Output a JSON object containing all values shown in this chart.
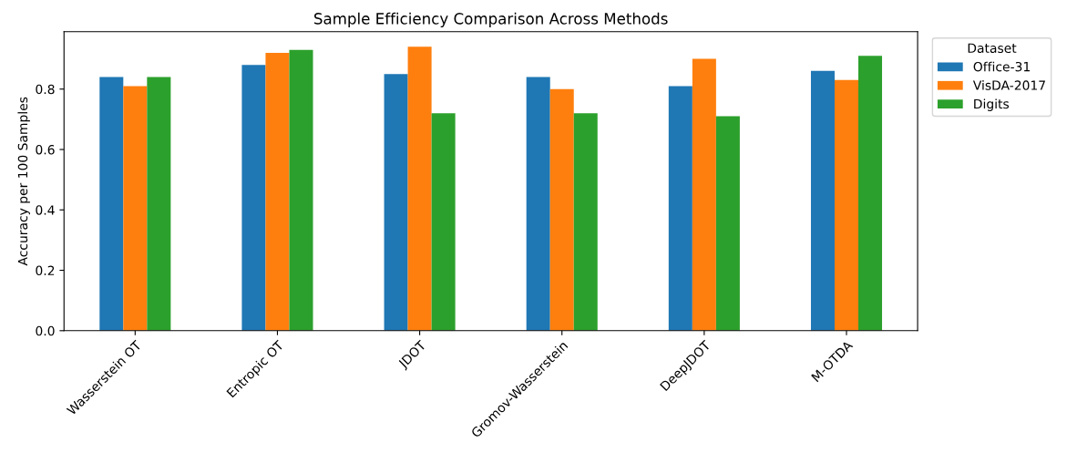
{
  "chart_data": {
    "type": "bar",
    "title": "Sample Efficiency Comparison Across Methods",
    "ylabel": "Accuracy per 100 Samples",
    "categories": [
      "Wasserstein OT",
      "Entropic OT",
      "JDOT",
      "Gromov-Wasserstein",
      "DeepJDOT",
      "M-OTDA"
    ],
    "series": [
      {
        "name": "Office-31",
        "color": "#1f77b4",
        "values": [
          0.84,
          0.88,
          0.85,
          0.84,
          0.81,
          0.86
        ]
      },
      {
        "name": "VisDA-2017",
        "color": "#ff7f0e",
        "values": [
          0.81,
          0.92,
          0.94,
          0.8,
          0.9,
          0.83
        ]
      },
      {
        "name": "Digits",
        "color": "#2ca02c",
        "values": [
          0.84,
          0.93,
          0.72,
          0.72,
          0.71,
          0.91
        ]
      }
    ],
    "ylim": [
      0,
      0.99
    ],
    "yticks": [
      {
        "value": 0,
        "label": "0.0"
      },
      0.2,
      0.4,
      0.6,
      0.8
    ],
    "legend": "top right",
    "legend_title": "Dataset",
    "grid": false
  }
}
